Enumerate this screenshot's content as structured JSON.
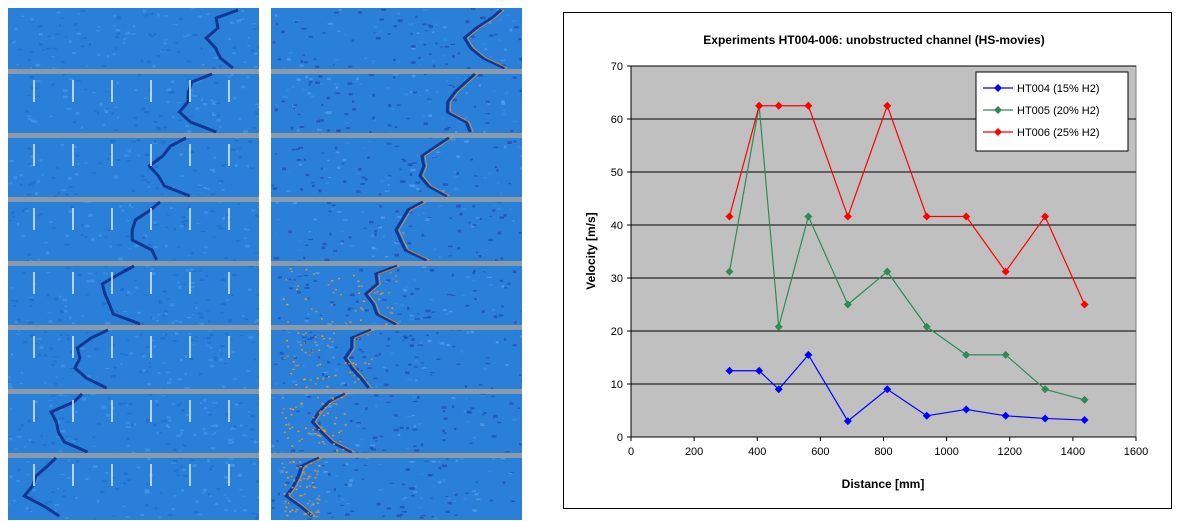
{
  "colors": {
    "plot_background": "#c0c0c0",
    "series": [
      "#0000ff",
      "#2e8b57",
      "#ff0000"
    ],
    "movie_base": "#2a7fd8",
    "movie_front": "#0d2a8a",
    "movie_hot": "#ff9a1a",
    "movie_separator": "#8a9aa8"
  },
  "figure": {
    "panels": [
      {
        "kind": "high-speed-movie-frames",
        "frames": 8,
        "colormap": "blue-dark"
      },
      {
        "kind": "high-speed-movie-frames",
        "frames": 8,
        "colormap": "blue-orange"
      }
    ]
  },
  "chart_data": {
    "type": "line",
    "title": "Experiments HT004-006: unobstructed channel (HS-movies)",
    "xlabel": "Distance [mm]",
    "ylabel": "Velocity [m/s]",
    "xlim": [
      0,
      1600
    ],
    "ylim": [
      0,
      70
    ],
    "xticks": [
      0,
      200,
      400,
      600,
      800,
      1000,
      1200,
      1400,
      1600
    ],
    "yticks": [
      0,
      10,
      20,
      30,
      40,
      50,
      60,
      70
    ],
    "grid": "horizontal",
    "legend_position": "top-right",
    "marker": "diamond",
    "series": [
      {
        "name": "HT004 (15% H2)",
        "color": "#0000ff",
        "x": [
          312,
          406,
          468,
          562,
          687,
          812,
          937,
          1062,
          1187,
          1312,
          1437
        ],
        "y": [
          12.5,
          12.5,
          9,
          15.5,
          3,
          9,
          4,
          5.2,
          4,
          3.5,
          3.2
        ]
      },
      {
        "name": "HT005 (20% H2)",
        "color": "#2e8b57",
        "x": [
          312,
          406,
          468,
          562,
          687,
          812,
          937,
          1062,
          1187,
          1312,
          1437
        ],
        "y": [
          31.2,
          62.5,
          20.8,
          41.6,
          25,
          31.2,
          20.8,
          15.5,
          15.5,
          9,
          7
        ]
      },
      {
        "name": "HT006 (25% H2)",
        "color": "#ff0000",
        "x": [
          312,
          406,
          468,
          562,
          687,
          812,
          937,
          1062,
          1187,
          1312,
          1437
        ],
        "y": [
          41.6,
          62.5,
          62.5,
          62.5,
          41.6,
          62.5,
          41.6,
          41.6,
          31.2,
          41.6,
          25
        ]
      }
    ]
  }
}
